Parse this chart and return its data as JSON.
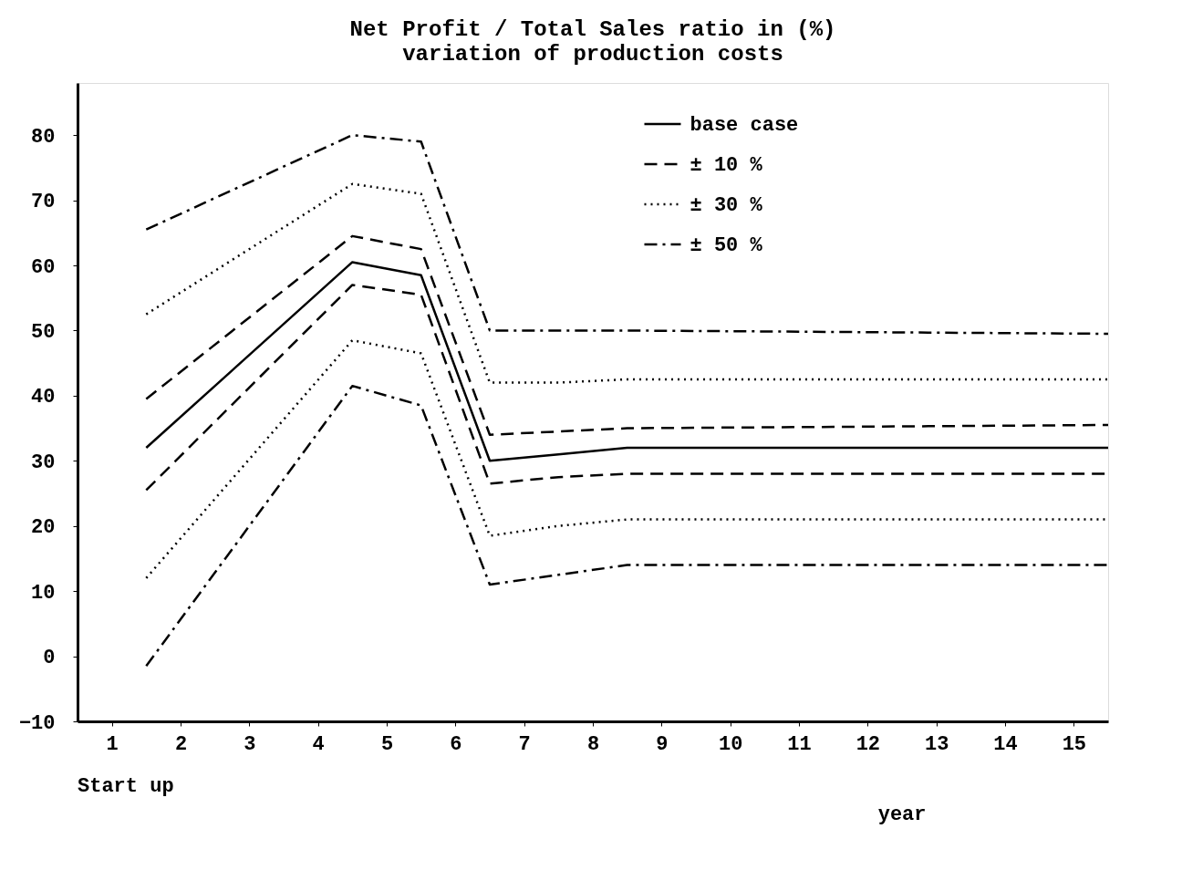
{
  "chart_data": {
    "type": "line",
    "title": "Net Profit / Total Sales ratio in (%)",
    "subtitle": "variation of production costs",
    "xlabel": "year",
    "annotations": [
      "Start up"
    ],
    "x": [
      1.5,
      4.5,
      5.5,
      6.5,
      7.5,
      8.5,
      15.5
    ],
    "series": [
      {
        "name": "base case",
        "color": "#000000",
        "line_style": "solid",
        "values": [
          32,
          60.5,
          58.5,
          30,
          31,
          32,
          32
        ]
      },
      {
        "name": "± 10 %",
        "color": "#000000",
        "line_style": "dashed",
        "values": [
          39.5,
          64.5,
          62.5,
          34,
          34.5,
          35,
          35.5
        ]
      },
      {
        "color": "#000000",
        "line_style": "dashed",
        "values": [
          25.5,
          57,
          55.5,
          26.5,
          27.5,
          28,
          28
        ]
      },
      {
        "name": "± 30 %",
        "color": "#000000",
        "line_style": "dotted",
        "values": [
          52.5,
          72.5,
          71,
          42,
          42,
          42.5,
          42.5
        ]
      },
      {
        "color": "#000000",
        "line_style": "dotted",
        "values": [
          12,
          48.5,
          46.5,
          18.5,
          20,
          21,
          21
        ]
      },
      {
        "name": "± 50 %",
        "color": "#000000",
        "line_style": "dashdot",
        "values": [
          65.5,
          80,
          79,
          50,
          50,
          50,
          49.5
        ]
      },
      {
        "color": "#000000",
        "line_style": "dashdot",
        "values": [
          -1.5,
          41.5,
          38.5,
          11,
          12.5,
          14,
          14
        ]
      }
    ],
    "xlim": [
      0.5,
      15.5
    ],
    "xticks": [
      1,
      2,
      3,
      4,
      5,
      6,
      7,
      8,
      9,
      10,
      11,
      12,
      13,
      14,
      15
    ],
    "ylim": [
      -10,
      88
    ],
    "yticks": [
      -10,
      0,
      10,
      20,
      30,
      40,
      50,
      60,
      70,
      80
    ],
    "grid": false,
    "legend": "top right"
  }
}
